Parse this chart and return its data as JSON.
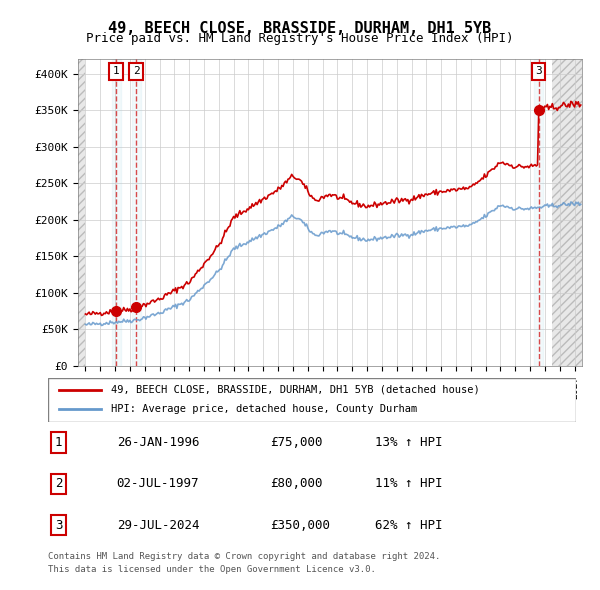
{
  "title": "49, BEECH CLOSE, BRASSIDE, DURHAM, DH1 5YB",
  "subtitle": "Price paid vs. HM Land Registry's House Price Index (HPI)",
  "property_label": "49, BEECH CLOSE, BRASSIDE, DURHAM, DH1 5YB (detached house)",
  "hpi_label": "HPI: Average price, detached house, County Durham",
  "footer1": "Contains HM Land Registry data © Crown copyright and database right 2024.",
  "footer2": "This data is licensed under the Open Government Licence v3.0.",
  "transactions": [
    {
      "num": 1,
      "date": "26-JAN-1996",
      "price": 75000,
      "pct": "13%",
      "dir": "↑"
    },
    {
      "num": 2,
      "date": "02-JUL-1997",
      "price": 80000,
      "pct": "11%",
      "dir": "↑"
    },
    {
      "num": 3,
      "date": "29-JUL-2024",
      "price": 350000,
      "pct": "62%",
      "dir": "↑"
    }
  ],
  "sale_dates": [
    "1996-01-26",
    "1997-07-02",
    "2024-07-29"
  ],
  "sale_prices": [
    75000,
    80000,
    350000
  ],
  "hpi_color": "#6699cc",
  "price_color": "#cc0000",
  "background_hatch_color": "#dddddd",
  "ylim": [
    0,
    420000
  ],
  "yticks": [
    0,
    50000,
    100000,
    150000,
    200000,
    250000,
    300000,
    350000,
    400000
  ],
  "xlim_start": 1993.5,
  "xlim_end": 2027.5
}
